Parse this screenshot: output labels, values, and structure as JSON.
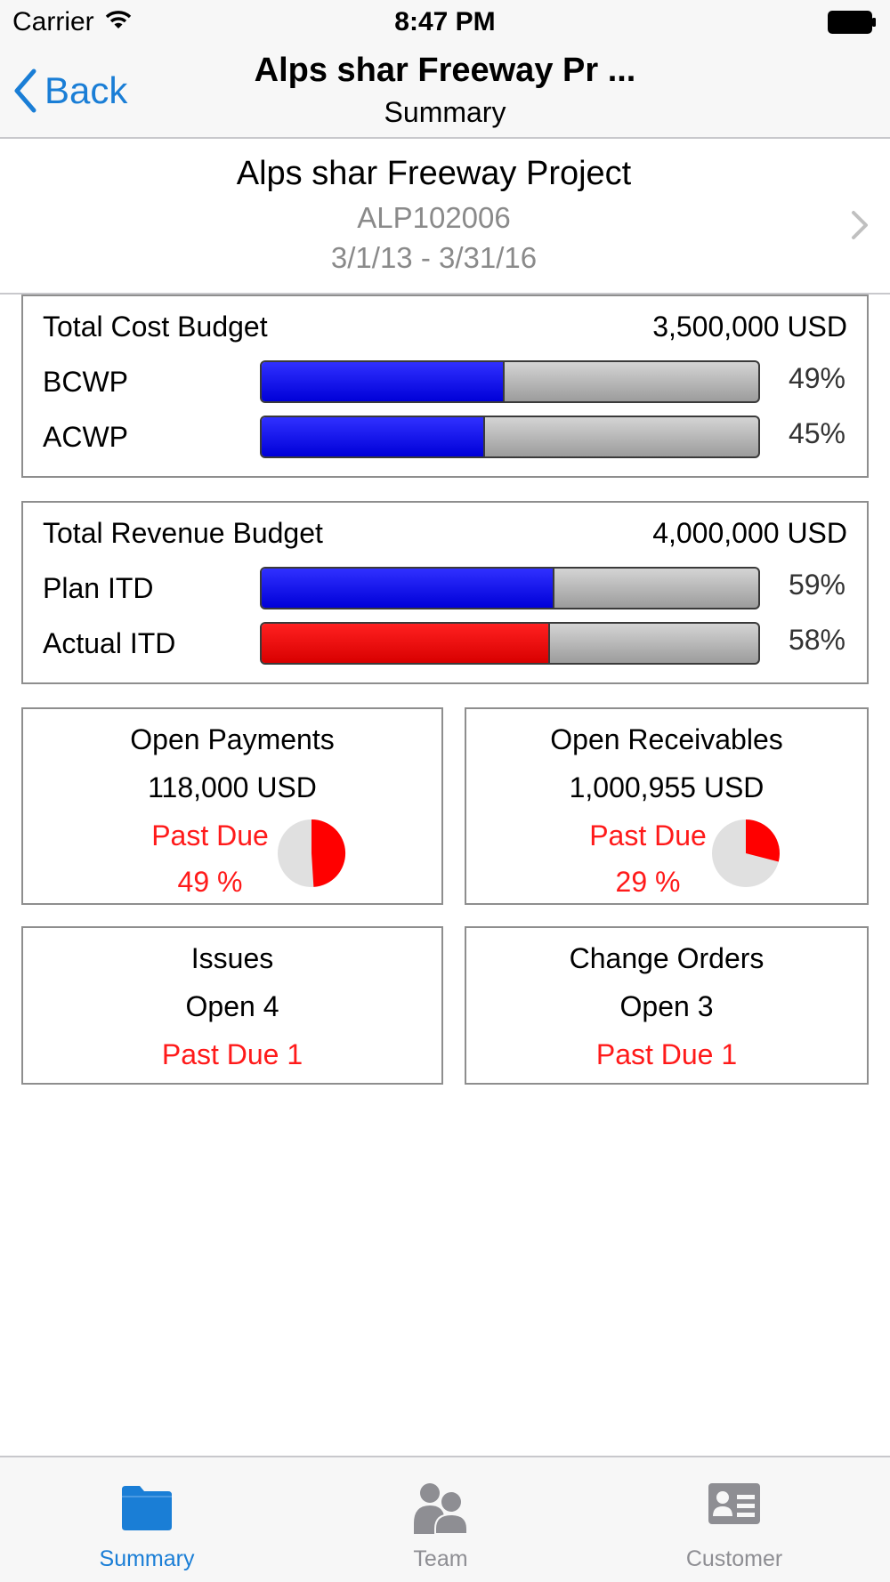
{
  "status_bar": {
    "carrier": "Carrier",
    "time": "8:47 PM"
  },
  "nav": {
    "back_label": "Back",
    "title": "Alps shar Freeway Pr ...",
    "subtitle": "Summary"
  },
  "project": {
    "name": "Alps shar Freeway Project",
    "code": "ALP102006",
    "dates": "3/1/13  -  3/31/16"
  },
  "cost_budget": {
    "title": "Total Cost Budget",
    "amount": "3,500,000  USD",
    "rows": [
      {
        "label": "BCWP",
        "percent_text": "49%",
        "percent": 49,
        "color": "#1010f0"
      },
      {
        "label": "ACWP",
        "percent_text": "45%",
        "percent": 45,
        "color": "#1010f0"
      }
    ]
  },
  "revenue_budget": {
    "title": "Total Revenue Budget",
    "amount": "4,000,000  USD",
    "rows": [
      {
        "label": "Plan ITD",
        "percent_text": "59%",
        "percent": 59,
        "color": "#1010f0"
      },
      {
        "label": "Actual ITD",
        "percent_text": "58%",
        "percent": 58,
        "color": "#f01010"
      }
    ]
  },
  "open_payments": {
    "title": "Open Payments",
    "amount": "118,000  USD",
    "past_due_label": "Past Due",
    "past_due_pct_text": "49 %",
    "past_due_pct": 49
  },
  "open_receivables": {
    "title": "Open Receivables",
    "amount": "1,000,955  USD",
    "past_due_label": "Past Due",
    "past_due_pct_text": "29 %",
    "past_due_pct": 29
  },
  "issues": {
    "title": "Issues",
    "open": "Open  4",
    "past_due": "Past Due  1"
  },
  "change_orders": {
    "title": "Change Orders",
    "open": "Open  3",
    "past_due": "Past Due  1"
  },
  "tabs": [
    {
      "label": "Summary",
      "icon": "folder-icon",
      "active": true
    },
    {
      "label": "Team",
      "icon": "team-icon",
      "active": false
    },
    {
      "label": "Customer",
      "icon": "contact-card-icon",
      "active": false
    }
  ],
  "colors": {
    "accent": "#1a7ed6",
    "past_due": "#ff1a1a",
    "bar_blue": "#1010f0",
    "bar_red": "#f01010"
  }
}
